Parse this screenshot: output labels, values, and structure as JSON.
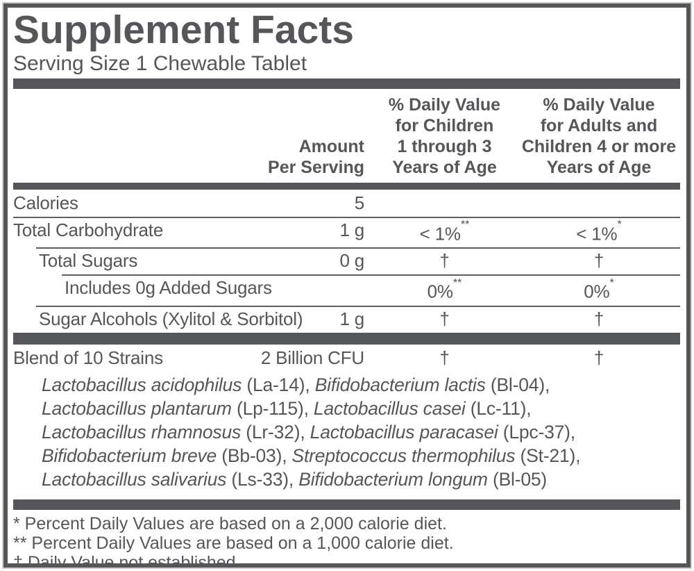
{
  "label": {
    "title": "Supplement Facts",
    "serving": "Serving Size 1 Chewable Tablet"
  },
  "headers": {
    "amount": [
      "Amount",
      "Per Serving"
    ],
    "child": [
      "% Daily Value",
      "for Children",
      "1 through 3",
      "Years of Age"
    ],
    "adult": [
      "% Daily Value",
      "for Adults and",
      "Children 4 or more",
      "Years of Age"
    ]
  },
  "rows": [
    {
      "name": "Calories",
      "amount": "5",
      "child": "",
      "adult": ""
    },
    {
      "name": "Total Carbohydrate",
      "amount": "1 g",
      "child": "< 1%",
      "child_sup": "**",
      "adult": "< 1%",
      "adult_sup": "*"
    },
    {
      "name": "Total Sugars",
      "amount": "0 g",
      "child": "†",
      "adult": "†"
    },
    {
      "name": "Includes 0g Added Sugars",
      "amount": "",
      "child": "0%",
      "child_sup": "**",
      "adult": "0%",
      "adult_sup": "*"
    },
    {
      "name": "Sugar Alcohols (Xylitol & Sorbitol)",
      "amount": "1 g",
      "child": "†",
      "adult": "†"
    }
  ],
  "blend": {
    "name": "Blend of 10 Strains",
    "amount": "2 Billion CFU",
    "child": "†",
    "adult": "†",
    "lines": [
      {
        "s1": "Lactobacillus acidophilus",
        "c1": " (La-14), ",
        "s2": "Bifidobacterium lactis",
        "c2": " (Bl-04),"
      },
      {
        "s1": "Lactobacillus plantarum",
        "c1": " (Lp-115), ",
        "s2": "Lactobacillus casei",
        "c2": " (Lc-11),"
      },
      {
        "s1": "Lactobacillus rhamnosus",
        "c1": " (Lr-32), ",
        "s2": "Lactobacillus paracasei",
        "c2": " (Lpc-37),"
      },
      {
        "s1": "Bifidobacterium breve",
        "c1": " (Bb-03), ",
        "s2": "Streptococcus thermophilus",
        "c2": " (St-21),"
      },
      {
        "s1": "Lactobacillus salivarius",
        "c1": " (Ls-33), ",
        "s2": "Bifidobacterium longum",
        "c2": " (Bl-05)"
      }
    ]
  },
  "footnotes": [
    "* Percent Daily Values are based on a 2,000 calorie diet.",
    "** Percent Daily Values are based on a 1,000 calorie diet.",
    "† Daily Value not established."
  ],
  "colors": {
    "ink": "#54565A"
  }
}
